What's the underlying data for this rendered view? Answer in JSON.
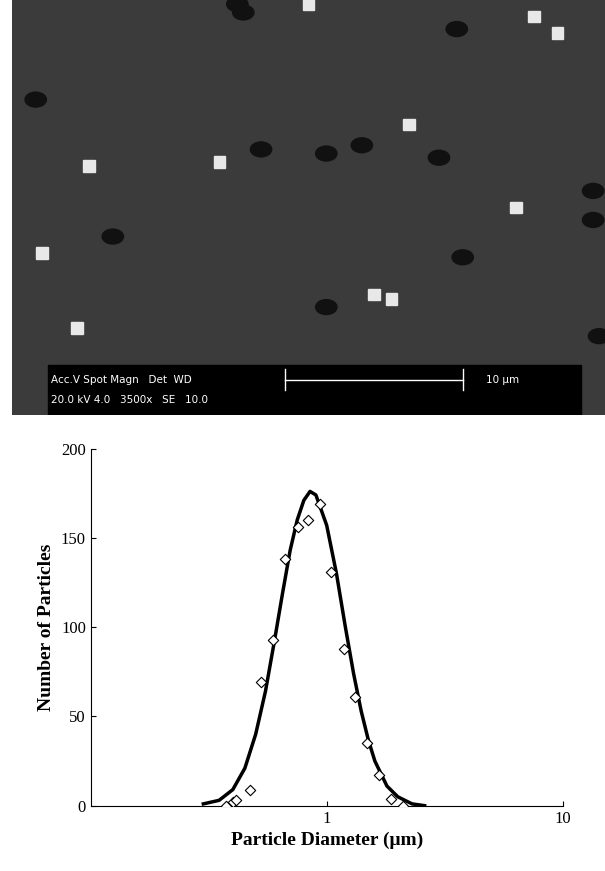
{
  "micrograph": {
    "info_line_1": "Acc.V Spot Magn   Det  WD",
    "info_line_2": "20.0 kV 4.0   3500x   SE   10.0",
    "scale_bar": "10 μm"
  },
  "chart_data": {
    "type": "scatter",
    "x_label": "Particle Diameter (μm)",
    "y_label": "Number of Particles",
    "log": "x",
    "xlim": [
      0.1,
      10
    ],
    "xticks": [
      1,
      10
    ],
    "ylim": [
      0,
      200
    ],
    "yticks": [
      0,
      50,
      100,
      150,
      200
    ],
    "grid": false,
    "series": [
      {
        "type": "scatter",
        "color": "#000000",
        "marker": "diamond",
        "x": [
          0.374,
          0.402,
          0.413,
          0.473,
          0.527,
          0.592,
          0.666,
          0.756,
          0.835,
          0.939,
          1.046,
          1.187,
          1.323,
          1.487,
          1.673,
          1.865,
          2.115
        ],
        "values": [
          0,
          2,
          3,
          9,
          69,
          93,
          138,
          156,
          160,
          169,
          131,
          88,
          61,
          35,
          17,
          4,
          0
        ]
      },
      {
        "type": "line",
        "color": "#000000",
        "line_style": "solid",
        "x": [
          0.3,
          0.35,
          0.4,
          0.45,
          0.5,
          0.55,
          0.6,
          0.65,
          0.7,
          0.75,
          0.8,
          0.85,
          0.9,
          1.0,
          1.1,
          1.2,
          1.3,
          1.4,
          1.5,
          1.6,
          1.8,
          2.0,
          2.3,
          2.6
        ],
        "values": [
          1,
          3,
          9,
          21,
          40,
          64,
          92,
          119,
          143,
          160,
          171,
          176,
          174,
          157,
          130,
          100,
          74,
          53,
          37,
          25,
          11,
          5,
          1,
          0
        ]
      }
    ]
  }
}
